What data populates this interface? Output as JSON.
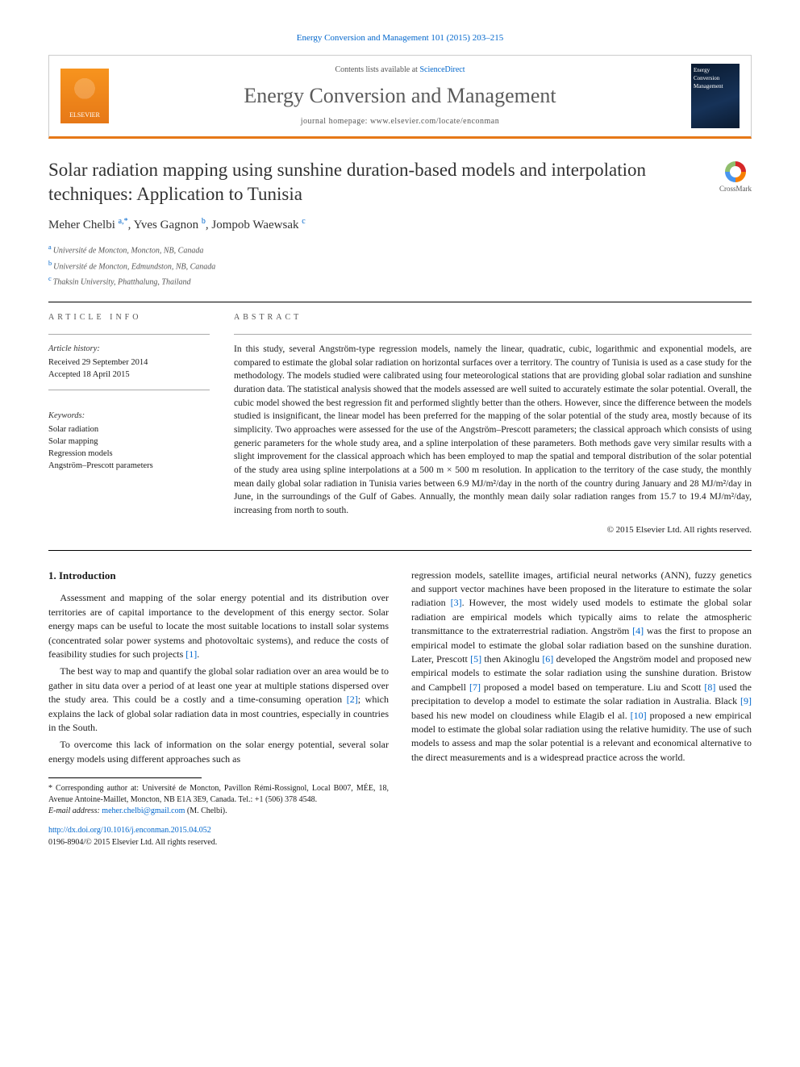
{
  "header": {
    "citation": "Energy Conversion and Management 101 (2015) 203–215",
    "contents_prefix": "Contents lists available at ",
    "contents_link": "ScienceDirect",
    "journal": "Energy Conversion and Management",
    "homepage": "journal homepage: www.elsevier.com/locate/enconman",
    "elsevier": "ELSEVIER",
    "cover_label": "Energy Conversion Management"
  },
  "crossmark": "CrossMark",
  "title": "Solar radiation mapping using sunshine duration-based models and interpolation techniques: Application to Tunisia",
  "authors": {
    "a1_name": "Meher Chelbi",
    "a1_sup": "a,*",
    "a2_name": "Yves Gagnon",
    "a2_sup": "b",
    "a3_name": "Jompob Waewsak",
    "a3_sup": "c"
  },
  "affiliations": {
    "a": "Université de Moncton, Moncton, NB, Canada",
    "b": "Université de Moncton, Edmundston, NB, Canada",
    "c": "Thaksin University, Phatthalung, Thailand"
  },
  "info": {
    "heading": "article info",
    "history_label": "Article history:",
    "received": "Received 29 September 2014",
    "accepted": "Accepted 18 April 2015",
    "keywords_label": "Keywords:",
    "kw1": "Solar radiation",
    "kw2": "Solar mapping",
    "kw3": "Regression models",
    "kw4": "Angström–Prescott parameters"
  },
  "abstract": {
    "heading": "abstract",
    "text": "In this study, several Angström-type regression models, namely the linear, quadratic, cubic, logarithmic and exponential models, are compared to estimate the global solar radiation on horizontal surfaces over a territory. The country of Tunisia is used as a case study for the methodology. The models studied were calibrated using four meteorological stations that are providing global solar radiation and sunshine duration data. The statistical analysis showed that the models assessed are well suited to accurately estimate the solar potential. Overall, the cubic model showed the best regression fit and performed slightly better than the others. However, since the difference between the models studied is insignificant, the linear model has been preferred for the mapping of the solar potential of the study area, mostly because of its simplicity. Two approaches were assessed for the use of the Angström–Prescott parameters; the classical approach which consists of using generic parameters for the whole study area, and a spline interpolation of these parameters. Both methods gave very similar results with a slight improvement for the classical approach which has been employed to map the spatial and temporal distribution of the solar potential of the study area using spline interpolations at a 500 m × 500 m resolution. In application to the territory of the case study, the monthly mean daily global solar radiation in Tunisia varies between 6.9 MJ/m²/day in the north of the country during January and 28 MJ/m²/day in June, in the surroundings of the Gulf of Gabes. Annually, the monthly mean daily solar radiation ranges from 15.7 to 19.4 MJ/m²/day, increasing from north to south.",
    "copyright": "© 2015 Elsevier Ltd. All rights reserved."
  },
  "body": {
    "section1_title": "1. Introduction",
    "p1": "Assessment and mapping of the solar energy potential and its distribution over territories are of capital importance to the development of this energy sector. Solar energy maps can be useful to locate the most suitable locations to install solar systems (concentrated solar power systems and photovoltaic systems), and reduce the costs of feasibility studies for such projects ",
    "r1": "[1]",
    "p1_end": ".",
    "p2": "The best way to map and quantify the global solar radiation over an area would be to gather in situ data over a period of at least one year at multiple stations dispersed over the study area. This could be a costly and a time-consuming operation ",
    "r2": "[2]",
    "p2_end": "; which explains the lack of global solar radiation data in most countries, especially in countries in the South.",
    "p3": "To overcome this lack of information on the solar energy potential, several solar energy models using different approaches such as",
    "p4a": "regression models, satellite images, artificial neural networks (ANN), fuzzy genetics and support vector machines have been proposed in the literature to estimate the solar radiation ",
    "r3": "[3]",
    "p4b": ". However, the most widely used models to estimate the global solar radiation are empirical models which typically aims to relate the atmospheric transmittance to the extraterrestrial radiation. Angström ",
    "r4": "[4]",
    "p4c": " was the first to propose an empirical model to estimate the global solar radiation based on the sunshine duration. Later, Prescott ",
    "r5": "[5]",
    "p4d": " then Akinoglu ",
    "r6": "[6]",
    "p4e": " developed the Angström model and proposed new empirical models to estimate the solar radiation using the sunshine duration. Bristow and Campbell ",
    "r7": "[7]",
    "p4f": " proposed a model based on temperature. Liu and Scott ",
    "r8": "[8]",
    "p4g": " used the precipitation to develop a model to estimate the solar radiation in Australia. Black ",
    "r9": "[9]",
    "p4h": " based his new model on cloudiness while Elagib el al. ",
    "r10": "[10]",
    "p4i": " proposed a new empirical model to estimate the global solar radiation using the relative humidity. The use of such models to assess and map the solar potential is a relevant and economical alternative to the direct measurements and is a widespread practice across the world."
  },
  "footnote": {
    "corr_label": "* Corresponding author at: Université de Moncton, Pavillon Rémi-Rossignol, Local B007, MÉE, 18, Avenue Antoine-Maillet, Moncton, NB E1A 3E9, Canada. Tel.: +1 (506) 378 4548.",
    "email_label": "E-mail address: ",
    "email": "meher.chelbi@gmail.com",
    "email_suffix": " (M. Chelbi)."
  },
  "doi": {
    "url": "http://dx.doi.org/10.1016/j.enconman.2015.04.052",
    "issn": "0196-8904/© 2015 Elsevier Ltd. All rights reserved."
  }
}
